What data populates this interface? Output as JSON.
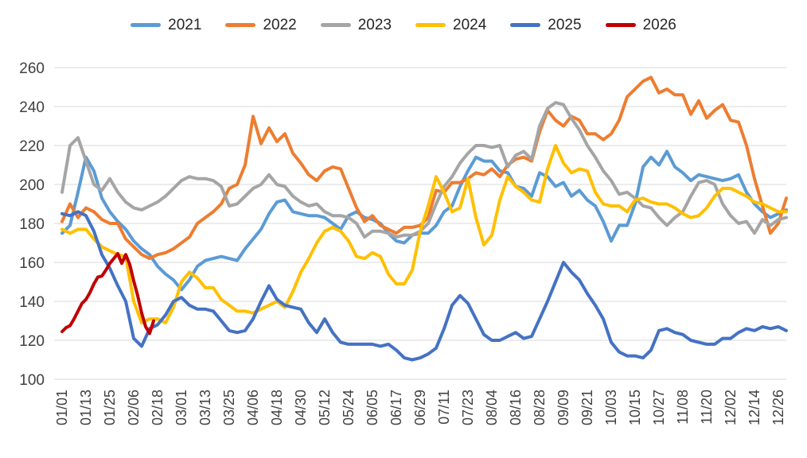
{
  "chart_data": {
    "type": "line",
    "title": "",
    "legend_position": "top",
    "grid": true,
    "x_axis": {
      "tick_labels": [
        "01/01",
        "01/13",
        "01/25",
        "02/06",
        "02/18",
        "03/01",
        "03/13",
        "03/25",
        "04/06",
        "04/18",
        "04/30",
        "05/12",
        "05/24",
        "06/05",
        "06/17",
        "06/29",
        "07/11",
        "07/23",
        "08/04",
        "08/16",
        "08/28",
        "09/09",
        "09/21",
        "10/03",
        "10/15",
        "10/27",
        "11/08",
        "11/20",
        "12/02",
        "12/14",
        "12/26"
      ],
      "tick_day_interval": 12,
      "total_days": 365
    },
    "y_axis": {
      "min": 100,
      "max": 260,
      "tick_step": 20,
      "ticks": [
        100,
        120,
        140,
        160,
        180,
        200,
        220,
        240,
        260
      ]
    },
    "series": [
      {
        "name": "2021",
        "color": "#5B9BD5",
        "day_start": 0,
        "day_step": 4,
        "values": [
          175,
          179,
          196,
          214,
          207,
          193,
          186,
          181,
          177,
          171,
          167,
          164,
          158,
          154,
          151,
          146,
          151,
          158,
          161,
          162,
          163,
          162,
          161,
          167,
          172,
          177,
          185,
          191,
          192,
          186,
          185,
          184,
          184,
          183,
          180,
          177,
          184,
          186,
          183,
          182,
          180,
          175,
          171,
          170,
          174,
          175,
          175,
          179,
          186,
          189,
          199,
          207,
          214,
          212,
          212,
          207,
          206,
          199,
          198,
          194,
          206,
          204,
          199,
          201,
          194,
          197,
          192,
          189,
          181,
          171,
          179,
          179,
          190,
          209,
          214,
          210,
          217,
          209,
          206,
          202,
          205,
          204,
          203,
          202,
          203,
          205,
          196,
          190,
          186,
          183,
          185,
          187
        ]
      },
      {
        "name": "2022",
        "color": "#ED7D31",
        "day_start": 0,
        "day_step": 4,
        "values": [
          181,
          190,
          183,
          188,
          186,
          182,
          180,
          180,
          172,
          168,
          164,
          162,
          164,
          165,
          167,
          170,
          173,
          180,
          183,
          186,
          190,
          198,
          200,
          210,
          235,
          221,
          229,
          222,
          226,
          216,
          211,
          205,
          202,
          207,
          209,
          208,
          198,
          188,
          181,
          184,
          179,
          177,
          175,
          178,
          178,
          179,
          183,
          197,
          196,
          201,
          201,
          203,
          206,
          205,
          208,
          204,
          210,
          213,
          214,
          212,
          227,
          238,
          233,
          230,
          235,
          233,
          226,
          226,
          223,
          226,
          233,
          245,
          249,
          253,
          255,
          247,
          249,
          246,
          246,
          236,
          243,
          234,
          238,
          241,
          233,
          232,
          220,
          203,
          189,
          175,
          180,
          193
        ]
      },
      {
        "name": "2023",
        "color": "#A5A5A5",
        "day_start": 0,
        "day_step": 4,
        "values": [
          196,
          220,
          224,
          212,
          200,
          197,
          203,
          196,
          191,
          188,
          187,
          189,
          191,
          194,
          198,
          202,
          204,
          203,
          203,
          202,
          199,
          189,
          190,
          194,
          198,
          200,
          205,
          200,
          199,
          194,
          191,
          189,
          190,
          186,
          184,
          184,
          183,
          180,
          173,
          176,
          176,
          175,
          173,
          174,
          174,
          176,
          180,
          190,
          199,
          204,
          211,
          216,
          220,
          220,
          219,
          220,
          209,
          215,
          217,
          213,
          230,
          239,
          242,
          241,
          234,
          228,
          220,
          214,
          207,
          202,
          195,
          196,
          193,
          189,
          188,
          183,
          179,
          183,
          186,
          194,
          201,
          202,
          200,
          190,
          184,
          180,
          181,
          175,
          182,
          179,
          182,
          183
        ]
      },
      {
        "name": "2024",
        "color": "#FFC000",
        "day_start": 0,
        "day_step": 4,
        "values": [
          177,
          175,
          177,
          177,
          172,
          168,
          166,
          164,
          163,
          140,
          129,
          131,
          131,
          129,
          137,
          150,
          155,
          152,
          147,
          147,
          141,
          138,
          135,
          135,
          134,
          136,
          138,
          140,
          137,
          145,
          155,
          162,
          170,
          176,
          178,
          176,
          171,
          163,
          162,
          165,
          163,
          154,
          149,
          149,
          156,
          176,
          189,
          204,
          196,
          186,
          188,
          203,
          183,
          169,
          174,
          192,
          204,
          199,
          196,
          192,
          191,
          208,
          220,
          211,
          206,
          208,
          207,
          196,
          190,
          189,
          189,
          186,
          192,
          193,
          191,
          190,
          190,
          188,
          185,
          183,
          184,
          188,
          194,
          198,
          198,
          196,
          194,
          191,
          190,
          188,
          186,
          186
        ]
      },
      {
        "name": "2025",
        "color": "#4472C4",
        "day_start": 0,
        "day_step": 4,
        "values": [
          185,
          184,
          186,
          184,
          176,
          164,
          157,
          148,
          140,
          121,
          117,
          126,
          128,
          133,
          140,
          142,
          138,
          136,
          136,
          135,
          130,
          125,
          124,
          125,
          131,
          140,
          148,
          141,
          138,
          137,
          136,
          129,
          124,
          131,
          124,
          119,
          118,
          118,
          118,
          118,
          117,
          118,
          115,
          111,
          110,
          111,
          113,
          116,
          126,
          138,
          143,
          139,
          131,
          123,
          120,
          120,
          122,
          124,
          121,
          122,
          131,
          140,
          150,
          160,
          155,
          151,
          144,
          138,
          131,
          119,
          114,
          112,
          112,
          111,
          115,
          125,
          126,
          124,
          123,
          120,
          119,
          118,
          118,
          121,
          121,
          124,
          126,
          125,
          127,
          126,
          127,
          125
        ]
      },
      {
        "name": "2026",
        "color": "#C00000",
        "day_start": 0,
        "day_step": 2,
        "values": [
          124.5,
          126.5,
          127.5,
          131,
          135,
          139,
          141,
          144.5,
          149,
          152.5,
          153,
          156,
          159.5,
          162,
          164.5,
          159.5,
          164,
          159,
          150.5,
          143,
          134,
          127,
          123.5,
          130
        ]
      }
    ]
  },
  "style": {
    "grid_color": "#D9D9D9",
    "axis_text_color": "#404040",
    "legend_text_color": "#262626",
    "background": "#FFFFFF"
  }
}
